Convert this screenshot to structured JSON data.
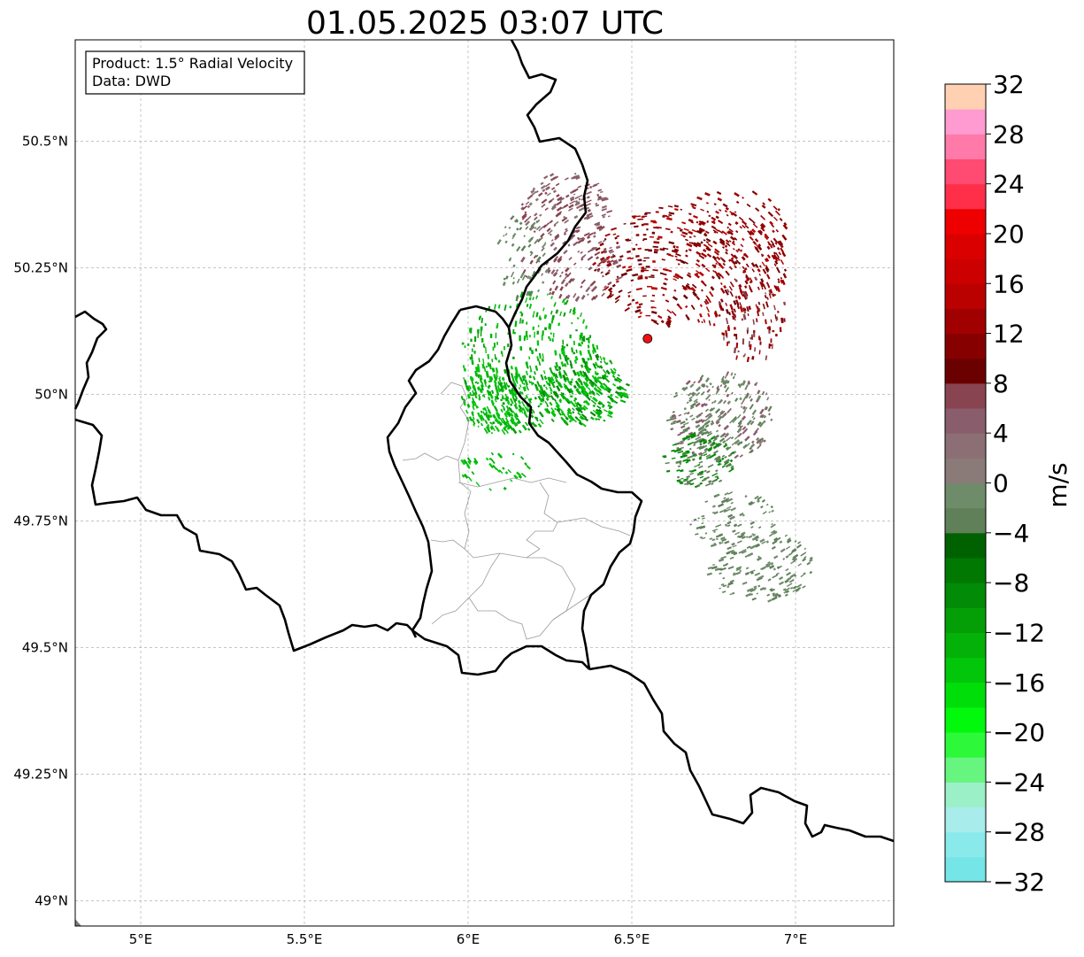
{
  "title": "01.05.2025 03:07 UTC",
  "info_box": {
    "product": "Product: 1.5° Radial Velocity",
    "source": "Data: DWD"
  },
  "map": {
    "extent": {
      "lon_min": 4.8,
      "lon_max": 7.3,
      "lat_min": 48.95,
      "lat_max": 50.7
    },
    "lon_ticks": [
      {
        "value": 5.0,
        "label": "5°E"
      },
      {
        "value": 5.5,
        "label": "5.5°E"
      },
      {
        "value": 6.0,
        "label": "6°E"
      },
      {
        "value": 6.5,
        "label": "6.5°E"
      },
      {
        "value": 7.0,
        "label": "7°E"
      }
    ],
    "lat_ticks": [
      {
        "value": 49.0,
        "label": "49°N"
      },
      {
        "value": 49.25,
        "label": "49.25°N"
      },
      {
        "value": 49.5,
        "label": "49.5°N"
      },
      {
        "value": 49.75,
        "label": "49.75°N"
      },
      {
        "value": 50.0,
        "label": "50°N"
      },
      {
        "value": 50.25,
        "label": "50.25°N"
      },
      {
        "value": 50.5,
        "label": "50.5°N"
      }
    ],
    "radar_site": {
      "lon": 6.548,
      "lat": 50.11,
      "color": "#ee1111"
    },
    "gridlines": true
  },
  "colorbar": {
    "label": "m/s",
    "min": -32,
    "max": 32,
    "ticks": [
      32,
      28,
      24,
      20,
      16,
      12,
      8,
      4,
      0,
      -4,
      -8,
      -12,
      -16,
      -20,
      -24,
      -28,
      -32
    ],
    "tick_labels": [
      "32",
      "28",
      "24",
      "20",
      "16",
      "12",
      "8",
      "4",
      "0",
      "−4",
      "−8",
      "−12",
      "−16",
      "−20",
      "−24",
      "−28",
      "−32"
    ],
    "colors_bottom_to_top": [
      "#75e5e7",
      "#8ae9eb",
      "#a8ecec",
      "#9cf0c8",
      "#66f57f",
      "#2ef83a",
      "#03f90c",
      "#00de0a",
      "#01c60a",
      "#03b109",
      "#049e07",
      "#018b06",
      "#007802",
      "#006100",
      "#5f8059",
      "#6e8b6a",
      "#8a7a78",
      "#8c6f74",
      "#8a5d6c",
      "#884451",
      "#6b0000",
      "#870000",
      "#a10000",
      "#bb0000",
      "#cd0000",
      "#db0000",
      "#ef0000",
      "#ff2f4a",
      "#ff4a71",
      "#ff7aa8",
      "#ff9bd1",
      "#ffd0b1"
    ]
  }
}
